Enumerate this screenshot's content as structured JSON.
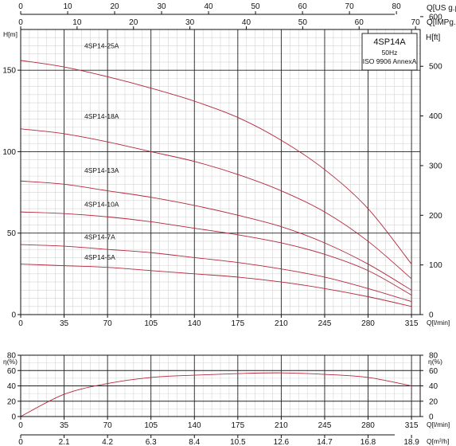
{
  "chart_data": [
    {
      "type": "line",
      "title": "4SP14A",
      "subtitle": [
        "50Hz",
        "ISO 9906 AnnexA"
      ],
      "xlabel": "Q[l/min]",
      "ylabel": "H[m]",
      "ylabel_right": "H[ft]",
      "xlabel_top_1": "Q[US g.p.m]",
      "xlabel_top_2": "Q[IMPg.p.m]",
      "xlim": [
        0,
        315
      ],
      "ylim": [
        0,
        175
      ],
      "x_ticks": [
        0,
        35,
        70,
        105,
        140,
        175,
        210,
        245,
        280,
        315
      ],
      "y_ticks": [
        0,
        50,
        100,
        150
      ],
      "y_right_ticks": [
        0,
        100,
        200,
        300,
        400,
        500,
        600
      ],
      "top1_ticks": [
        0,
        10,
        20,
        30,
        40,
        50,
        60,
        70,
        80
      ],
      "top2_ticks": [
        0,
        10,
        20,
        30,
        40,
        50,
        60,
        70
      ],
      "grid": true,
      "series": [
        {
          "name": "4SP14-25A",
          "x": [
            0,
            35,
            70,
            105,
            140,
            175,
            210,
            245,
            280,
            315
          ],
          "y": [
            156,
            152,
            146,
            139,
            131,
            121,
            107,
            89,
            65,
            31
          ]
        },
        {
          "name": "4SP14-18A",
          "x": [
            0,
            35,
            70,
            105,
            140,
            175,
            210,
            245,
            280,
            315
          ],
          "y": [
            114,
            111,
            106,
            100,
            94,
            86,
            76,
            63,
            45,
            22
          ]
        },
        {
          "name": "4SP14-13A",
          "x": [
            0,
            35,
            70,
            105,
            140,
            175,
            210,
            245,
            280,
            315
          ],
          "y": [
            82,
            80,
            76,
            72,
            67,
            61,
            54,
            44,
            31,
            15
          ]
        },
        {
          "name": "4SP14-10A",
          "x": [
            0,
            35,
            70,
            105,
            140,
            175,
            210,
            245,
            280,
            315
          ],
          "y": [
            63,
            62,
            60,
            57,
            53,
            49,
            44,
            37,
            27,
            12
          ]
        },
        {
          "name": "4SP14-7A",
          "x": [
            0,
            35,
            70,
            105,
            140,
            175,
            210,
            245,
            280,
            315
          ],
          "y": [
            43,
            42,
            40,
            38,
            35,
            32,
            28,
            23,
            16,
            8
          ]
        },
        {
          "name": "4SP14-5A",
          "x": [
            0,
            35,
            70,
            105,
            140,
            175,
            210,
            245,
            280,
            315
          ],
          "y": [
            31,
            30,
            29,
            27,
            25,
            23,
            20,
            16,
            11,
            5
          ]
        }
      ]
    },
    {
      "type": "line",
      "xlabel": "Q[l/min]",
      "ylabel": "η(%)",
      "ylabel_right": "η(%)",
      "xlabel_bottom_2": "Q[m³/h]",
      "xlim": [
        0,
        315
      ],
      "ylim": [
        0,
        80
      ],
      "x_ticks": [
        0,
        35,
        70,
        105,
        140,
        175,
        210,
        245,
        280,
        315
      ],
      "y_ticks": [
        0,
        20,
        40,
        60,
        80
      ],
      "bottom2_ticks": [
        "0",
        "2.1",
        "4.2",
        "6.3",
        "8.4",
        "10.5",
        "12.6",
        "14.7",
        "16.8",
        "18.9"
      ],
      "grid": true,
      "series": [
        {
          "x": [
            0,
            35,
            70,
            105,
            140,
            175,
            210,
            245,
            280,
            315
          ],
          "y": [
            0,
            29,
            43,
            51,
            54,
            56,
            57,
            55,
            51,
            40
          ]
        }
      ]
    }
  ]
}
